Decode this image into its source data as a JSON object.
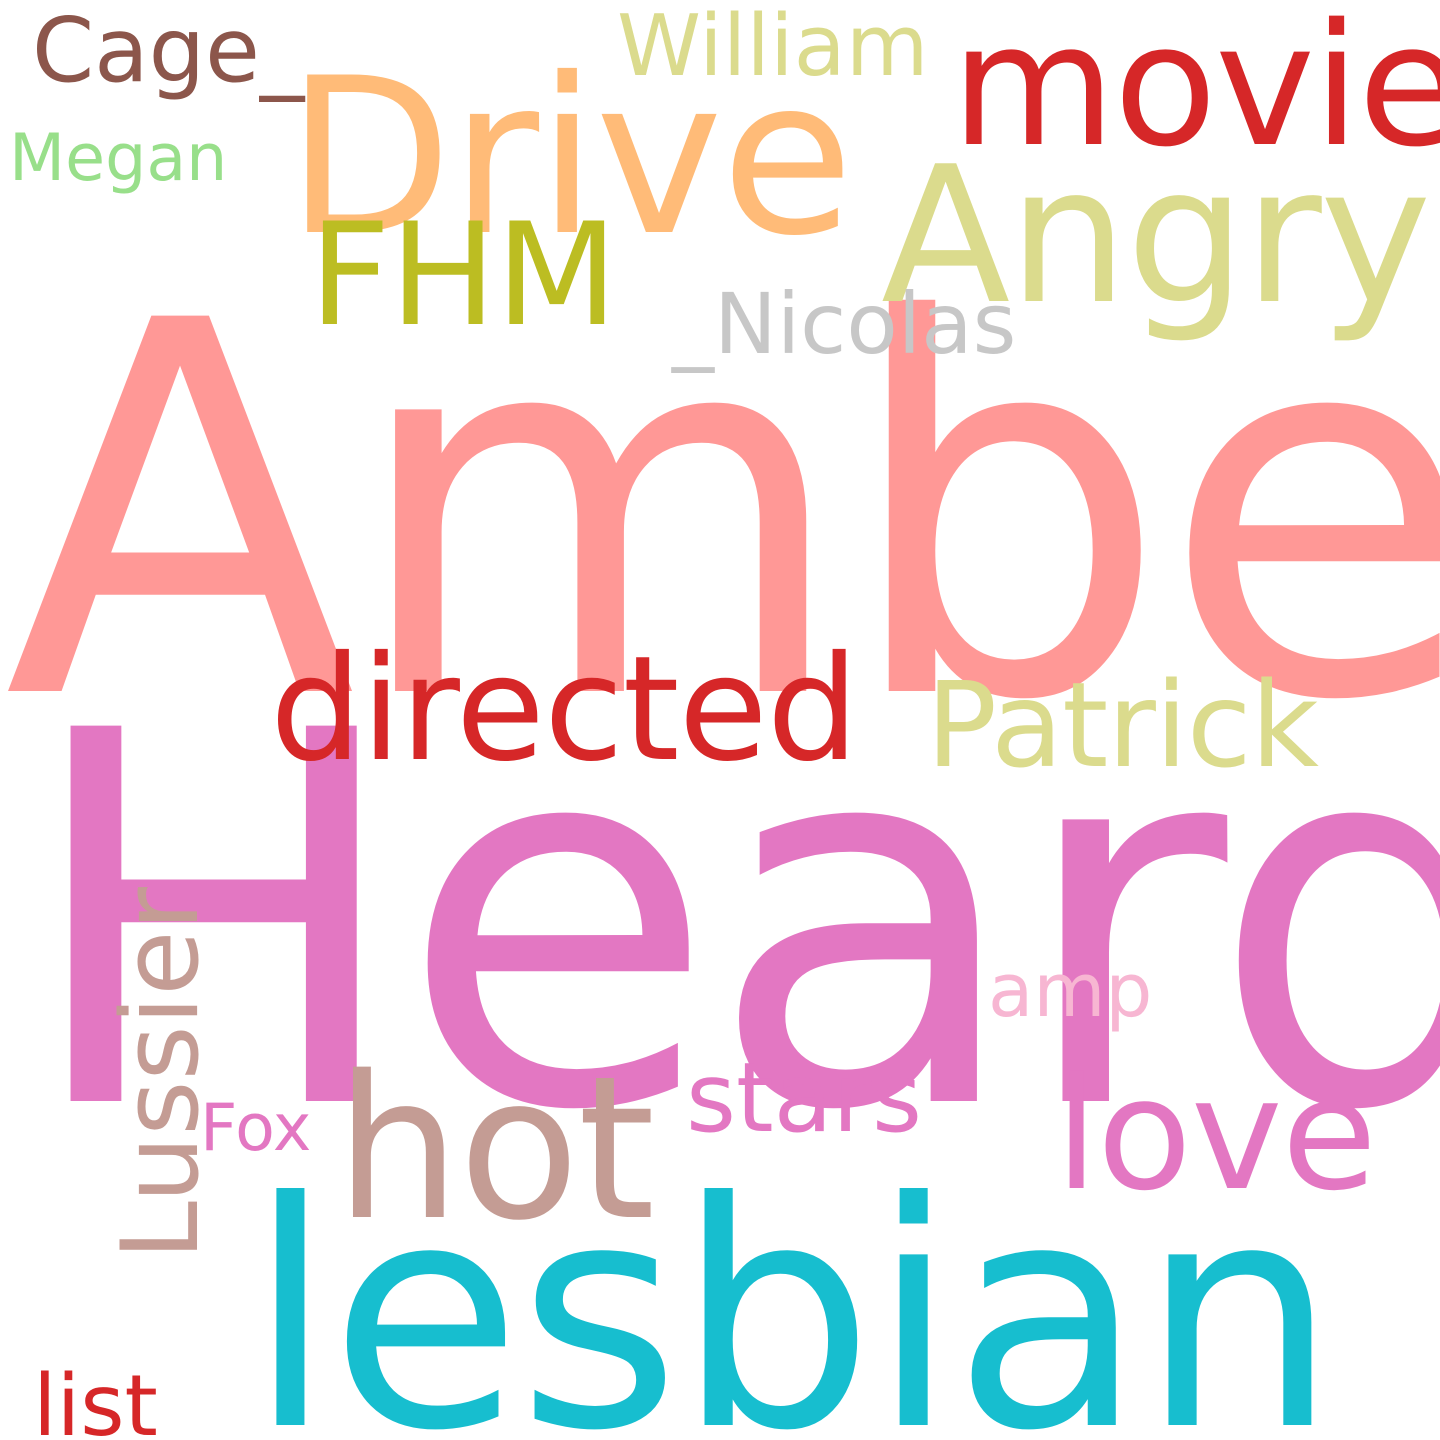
{
  "word_cloud": {
    "words": [
      {
        "key": "amber",
        "text": "Amber",
        "color": "#ff9896"
      },
      {
        "key": "heard",
        "text": "Heard",
        "color": "#e377c2"
      },
      {
        "key": "lesbian",
        "text": "lesbian",
        "color": "#17becf"
      },
      {
        "key": "drive",
        "text": "Drive",
        "color": "#ffbb78"
      },
      {
        "key": "angry",
        "text": "Angry",
        "color": "#dbdb8d"
      },
      {
        "key": "hot",
        "text": "hot",
        "color": "#c49c94"
      },
      {
        "key": "movie",
        "text": "movie",
        "color": "#d62728"
      },
      {
        "key": "directed",
        "text": "directed",
        "color": "#d62728"
      },
      {
        "key": "patrick",
        "text": "Patrick",
        "color": "#dbdb8d"
      },
      {
        "key": "love",
        "text": "love",
        "color": "#e377c2"
      },
      {
        "key": "fhm",
        "text": "FHM",
        "color": "#bcbd22"
      },
      {
        "key": "nicolas",
        "text": "_Nicolas",
        "color": "#c7c7c7"
      },
      {
        "key": "william",
        "text": "William",
        "color": "#dbdb8d"
      },
      {
        "key": "cage",
        "text": "Cage_",
        "color": "#8c564b"
      },
      {
        "key": "megan",
        "text": "Megan",
        "color": "#98df8a"
      },
      {
        "key": "lussier",
        "text": "Lussier",
        "color": "#c49c94"
      },
      {
        "key": "stars",
        "text": "stars",
        "color": "#e377c2"
      },
      {
        "key": "amp",
        "text": "amp",
        "color": "#f7b6d2"
      },
      {
        "key": "fox",
        "text": "Fox",
        "color": "#e377c2"
      },
      {
        "key": "list",
        "text": "list",
        "color": "#d62728"
      }
    ]
  }
}
